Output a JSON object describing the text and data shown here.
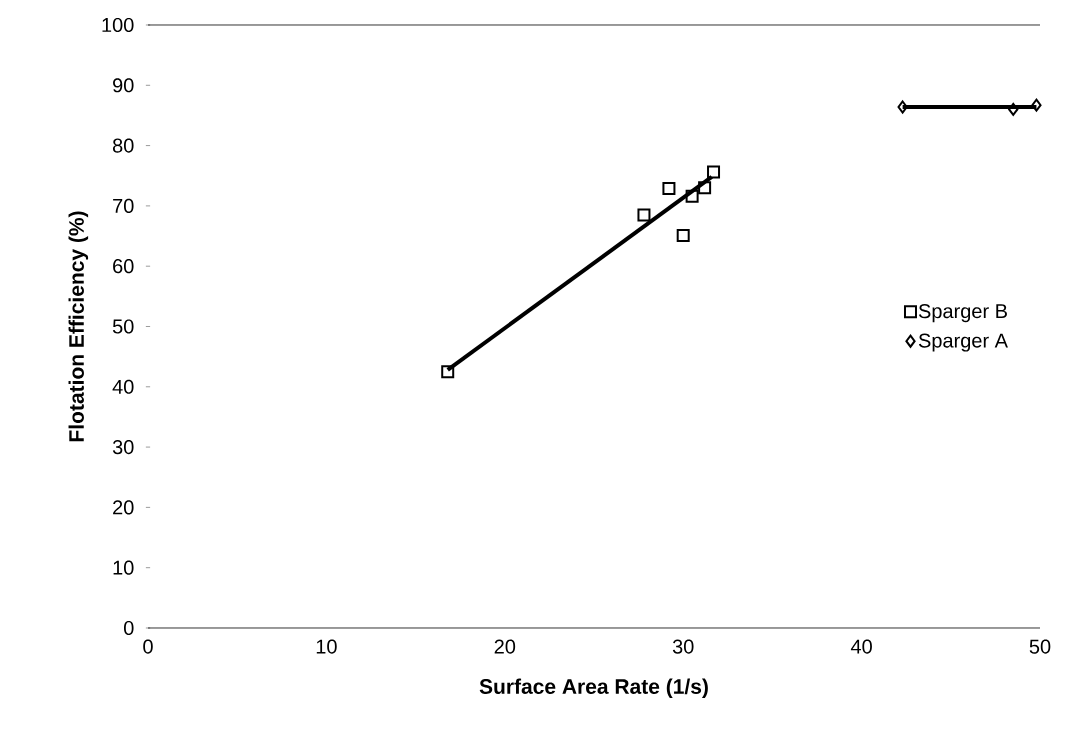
{
  "chart_data": {
    "type": "scatter",
    "xlabel": "Surface Area Rate (1/s)",
    "ylabel": "Flotation Efficiency (%)",
    "xlim": [
      0,
      50
    ],
    "ylim": [
      0,
      100
    ],
    "xticks": [
      0,
      10,
      20,
      30,
      40,
      50
    ],
    "yticks": [
      0,
      10,
      20,
      30,
      40,
      50,
      60,
      70,
      80,
      90,
      100
    ],
    "grid": false,
    "legend": "right",
    "series": [
      {
        "type": "line",
        "color": "#000000",
        "marker": "none",
        "x": [
          16.8,
          31.6
        ],
        "values": [
          42.8,
          74.8
        ]
      },
      {
        "type": "line",
        "color": "#000000",
        "marker": "none",
        "x": [
          42.3,
          49.8
        ],
        "values": [
          86.4,
          86.4
        ]
      },
      {
        "name": "Sparger B",
        "color": "#000000",
        "marker": "square",
        "x": [
          16.8,
          27.8,
          29.2,
          30.0,
          30.5,
          31.2,
          31.7
        ],
        "values": [
          42.5,
          68.5,
          72.9,
          65.1,
          71.6,
          73.0,
          75.6
        ]
      },
      {
        "name": "Sparger A",
        "color": "#000000",
        "marker": "diamond",
        "x": [
          42.3,
          48.5,
          49.8
        ],
        "values": [
          86.4,
          86.0,
          86.7
        ]
      }
    ]
  }
}
